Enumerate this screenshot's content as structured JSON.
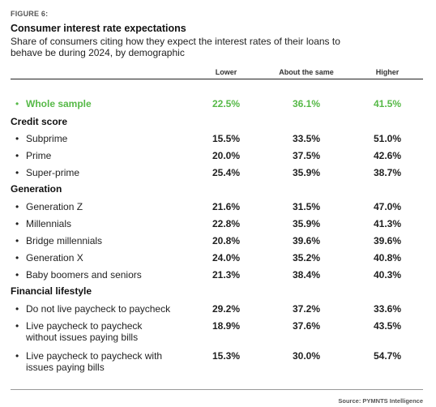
{
  "figure_label": "FIGURE 6:",
  "title": "Consumer interest rate expectations",
  "subtitle": "Share of consumers citing how they expect the interest rates of their loans to behave be during 2024, by demographic",
  "columns": [
    "Lower",
    "About the same",
    "Higher"
  ],
  "whole_sample": {
    "bullet": "•",
    "label": "Whole sample",
    "values": [
      "22.5%",
      "36.1%",
      "41.5%"
    ]
  },
  "groups": [
    {
      "name": "Credit score",
      "rows": [
        {
          "bullet": "•",
          "label": "Subprime",
          "values": [
            "15.5%",
            "33.5%",
            "51.0%"
          ]
        },
        {
          "bullet": "•",
          "label": "Prime",
          "values": [
            "20.0%",
            "37.5%",
            "42.6%"
          ]
        },
        {
          "bullet": "•",
          "label": "Super-prime",
          "values": [
            "25.4%",
            "35.9%",
            "38.7%"
          ]
        }
      ]
    },
    {
      "name": "Generation",
      "rows": [
        {
          "bullet": "•",
          "label": "Generation Z",
          "values": [
            "21.6%",
            "31.5%",
            "47.0%"
          ]
        },
        {
          "bullet": "•",
          "label": "Millennials",
          "values": [
            "22.8%",
            "35.9%",
            "41.3%"
          ]
        },
        {
          "bullet": "•",
          "label": "Bridge millennials",
          "values": [
            "20.8%",
            "39.6%",
            "39.6%"
          ]
        },
        {
          "bullet": "•",
          "label": "Generation X",
          "values": [
            "24.0%",
            "35.2%",
            "40.8%"
          ]
        },
        {
          "bullet": "•",
          "label": "Baby boomers and seniors",
          "values": [
            "21.3%",
            "38.4%",
            "40.3%"
          ]
        }
      ]
    },
    {
      "name": "Financial lifestyle",
      "rows": [
        {
          "bullet": "•",
          "label": "Do not live paycheck to paycheck",
          "values": [
            "29.2%",
            "37.2%",
            "33.6%"
          ]
        },
        {
          "bullet": "•",
          "label": "Live paycheck to paycheck without issues paying bills",
          "values": [
            "18.9%",
            "37.6%",
            "43.5%"
          ]
        },
        {
          "bullet": "•",
          "label": "Live paycheck to paycheck with issues paying bills",
          "values": [
            "15.3%",
            "30.0%",
            "54.7%"
          ]
        }
      ]
    }
  ],
  "source": "Source: PYMNTS Intelligence",
  "colors": {
    "highlight": "#56b947"
  }
}
